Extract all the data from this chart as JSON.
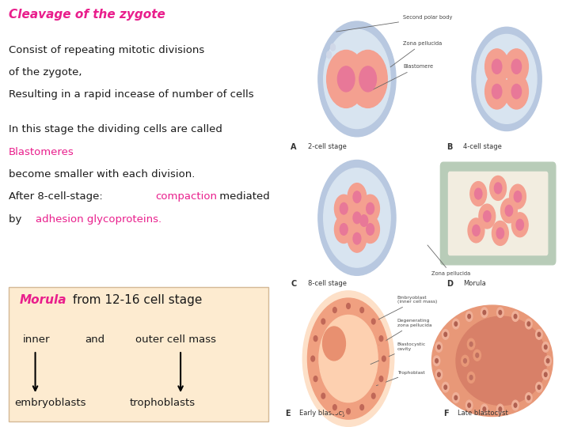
{
  "bg_left_top": "#fce8d8",
  "bg_main": "#ffffff",
  "bg_bottom_box": "#fdebd0",
  "title": "Cleavage of the zygote",
  "title_color": "#e91e8c",
  "text_color": "#1a1a1a",
  "highlight_color": "#e91e8c",
  "line1": "Consist of repeating mitotic divisions",
  "line2": "of the zygote,",
  "line3": "Resulting in a rapid incease of number of cells",
  "line4": "In this stage the dividing cells are called",
  "line5_pink": "Blastomeres",
  "line6": "become smaller with each division.",
  "line7_prefix": "After 8-cell-stage: ",
  "line7_pink": "compaction",
  "line7_suffix": " mediated",
  "line8_prefix": "by  ",
  "line8_pink": "adhesion glycoproteins.",
  "morula_pink": "Morula",
  "morula_rest": " from 12-16 cell stage",
  "inner_text": "inner",
  "and_text": "and",
  "outer_text": "outer cell mass",
  "embryoblasts_text": "embryoblasts",
  "trophoblasts_text": "trophoblasts",
  "font_size_title": 11,
  "font_size_body": 9.5,
  "font_size_morula": 11,
  "font_size_diagram": 6,
  "cell_color": "#f4a090",
  "nucleus_color": "#e87898",
  "zona_color": "#b8c8e0",
  "zona_inner_color": "#d8e4f0"
}
